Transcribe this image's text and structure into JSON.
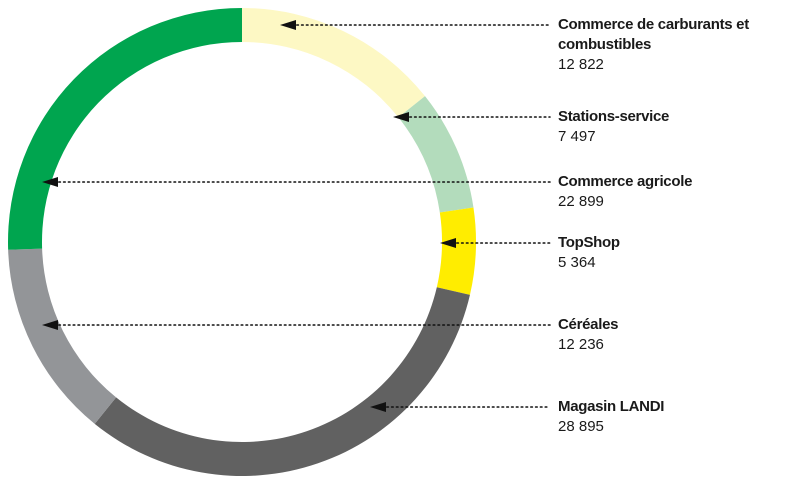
{
  "chart_data": {
    "type": "donut",
    "categories": [
      "Commerce de carburants et combustibles",
      "Stations-service",
      "TopShop",
      "Magasin LANDI",
      "Céréales",
      "Commerce agricole"
    ],
    "values": [
      12822,
      7497,
      5364,
      28895,
      12236,
      22899
    ],
    "value_labels": [
      "12 822",
      "7 497",
      "5 364",
      "28 895",
      "12 236",
      "22 899"
    ],
    "colors": [
      "#fdf8c4",
      "#b3dcbc",
      "#ffed00",
      "#616161",
      "#939598",
      "#00a54f"
    ]
  }
}
